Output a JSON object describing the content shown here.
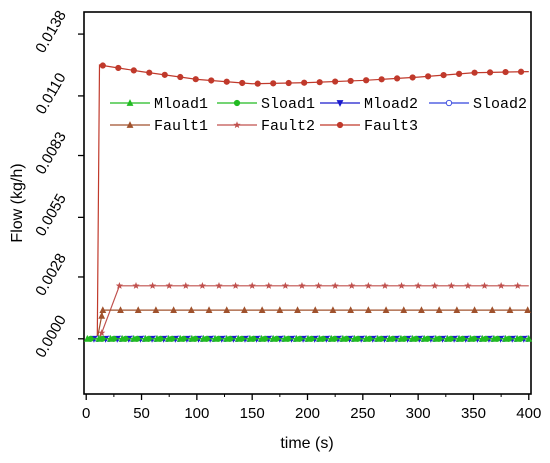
{
  "chart_data": {
    "type": "line",
    "xlabel": "time (s)",
    "ylabel": "Flow (kg/h)",
    "xlim": [
      -2,
      402
    ],
    "ylim": [
      -0.0025,
      0.0148
    ],
    "x_ticks": [
      0,
      50,
      100,
      150,
      200,
      250,
      300,
      350,
      400
    ],
    "x_tick_labels": [
      "0",
      "50",
      "100",
      "150",
      "200",
      "250",
      "300",
      "350",
      "400"
    ],
    "y_ticks": [
      0.0,
      0.0028,
      0.0055,
      0.0083,
      0.011,
      0.0138
    ],
    "y_tick_labels": [
      "0.0000",
      "0.0028",
      "0.0055",
      "0.0083",
      "0.0110",
      "0.0138"
    ],
    "grid": false,
    "legend_position": "upper-right",
    "legend_order": [
      "Mload1",
      "Sload1",
      "Mload2",
      "Sload2",
      "Fault1",
      "Fault2",
      "Fault3"
    ],
    "series": [
      {
        "name": "Mload1",
        "color": "#22bb22",
        "marker": "triangle-up",
        "x": [
          0,
          400
        ],
        "values": [
          0.0,
          0.0
        ]
      },
      {
        "name": "Sload1",
        "color": "#22bb22",
        "marker": "circle-filled",
        "x": [
          0,
          400
        ],
        "values": [
          0.0,
          0.0
        ]
      },
      {
        "name": "Mload2",
        "color": "#1a1acc",
        "marker": "triangle-down",
        "x": [
          0,
          400
        ],
        "values": [
          0.0,
          0.0
        ]
      },
      {
        "name": "Sload2",
        "color": "#3344dd",
        "marker": "circle-open",
        "x": [
          0,
          400
        ],
        "values": [
          0.0,
          0.0
        ]
      },
      {
        "name": "Fault1",
        "color": "#a0522d",
        "marker": "triangle-up",
        "x": [
          0,
          10,
          15,
          400
        ],
        "values": [
          0.0,
          0.0,
          0.0013,
          0.0013
        ]
      },
      {
        "name": "Fault2",
        "color": "#c0504d",
        "marker": "star",
        "x": [
          0,
          12,
          30,
          400
        ],
        "values": [
          0.0,
          0.0,
          0.0024,
          0.0024
        ]
      },
      {
        "name": "Fault3",
        "color": "#c0392b",
        "marker": "circle-filled",
        "x": [
          0,
          10,
          12,
          50,
          100,
          150,
          200,
          250,
          300,
          350,
          400
        ],
        "values": [
          0.0,
          0.0,
          0.0124,
          0.0121,
          0.01175,
          0.01155,
          0.0116,
          0.0117,
          0.01185,
          0.01205,
          0.0121
        ]
      }
    ]
  }
}
